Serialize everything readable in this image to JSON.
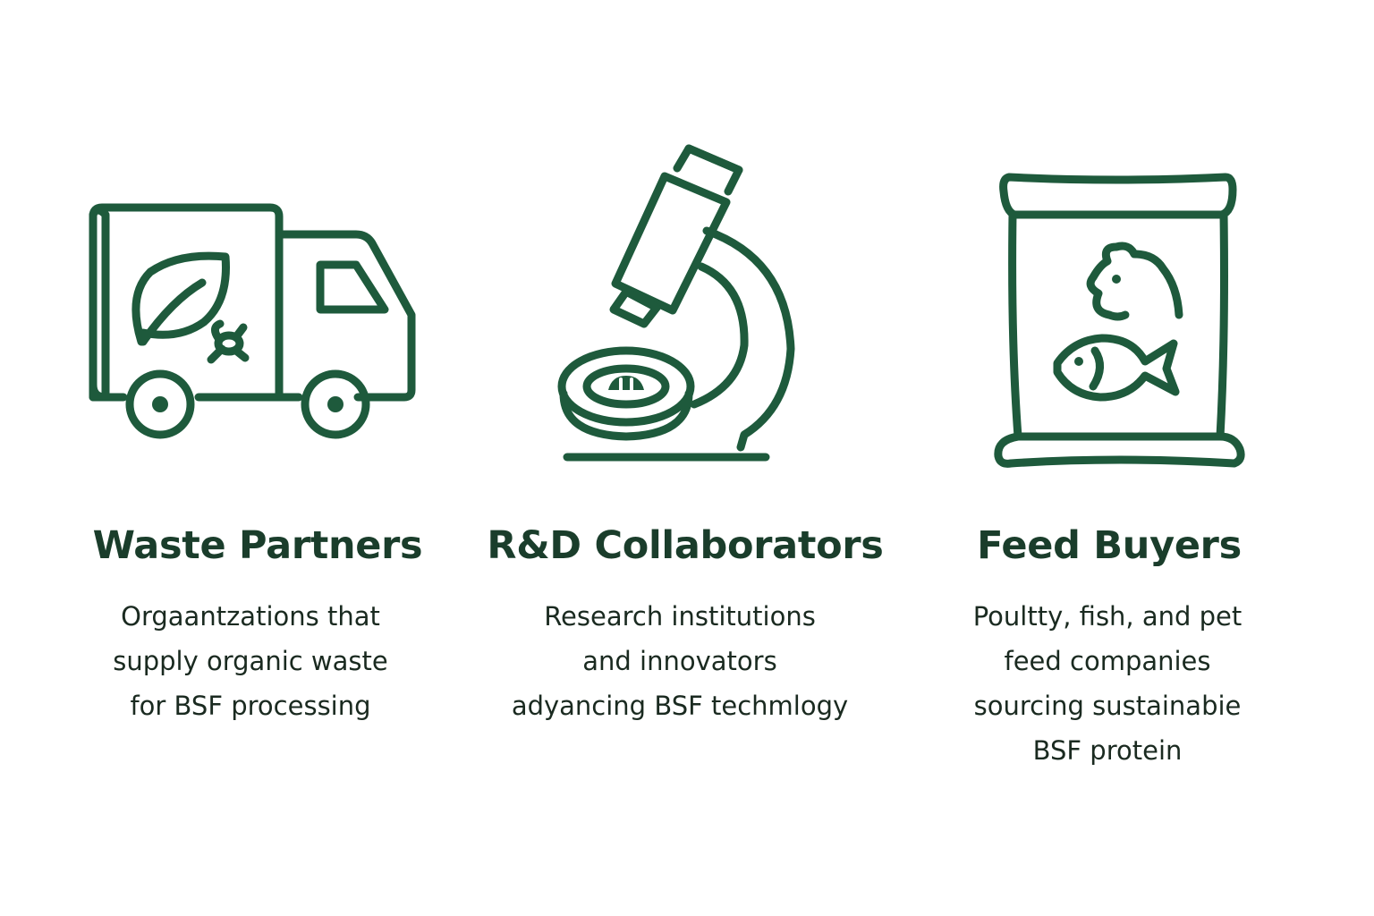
{
  "cards": [
    {
      "title": "Waste Partners",
      "icon": "delivery-truck-icon",
      "description": [
        "Orgaantzations that",
        "supply organic waste",
        "for BSF processing"
      ]
    },
    {
      "title": "R&D Collaborators",
      "icon": "microscope-icon",
      "description": [
        "Research institutions",
        "and innovators",
        "adyancing BSF techmlogy"
      ]
    },
    {
      "title": "Feed Buyers",
      "icon": "feed-bag-icon",
      "description": [
        "Poultty, fish, and pet",
        "feed companies",
        "sourcing sustainabie",
        "BSF protein"
      ]
    }
  ],
  "colors": {
    "icon_stroke": "#1e5a3c",
    "heading": "#1a3d2b",
    "body_text": "#1a2a20",
    "background": "#ffffff"
  }
}
